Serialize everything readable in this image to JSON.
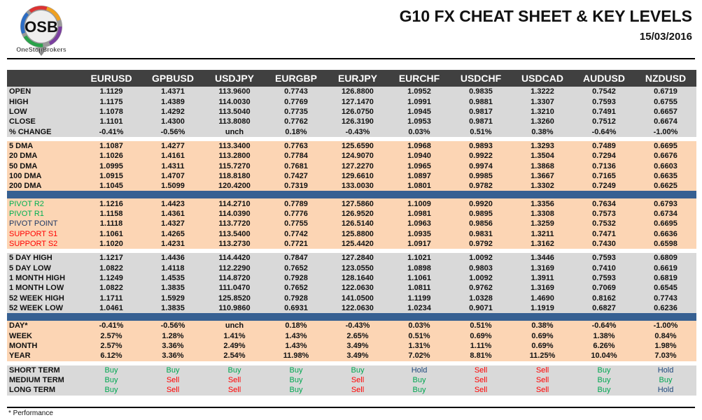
{
  "header": {
    "title": "G10 FX CHEAT SHEET & KEY LEVELS",
    "date": "15/03/2016",
    "logo_text": "OSB",
    "logo_caption": "OneStopBrokers"
  },
  "colors": {
    "header_bg": "#404040",
    "gray": "#d9d9d9",
    "peach": "#fcd5b4",
    "blue": "#366092",
    "buy": "#00a651",
    "sell": "#ff0000",
    "hold": "#1f497d",
    "pivot_r": "#00b050",
    "pivot_point": "#1f3864",
    "support": "#ff0000"
  },
  "columns": [
    "EURUSD",
    "GPBUSD",
    "USDJPY",
    "EURGBP",
    "EURJPY",
    "EURCHF",
    "USDCHF",
    "USDCAD",
    "AUDUSD",
    "NZDUSD"
  ],
  "sections": [
    {
      "style": "gray",
      "rows": [
        {
          "label": "OPEN",
          "values": [
            "1.1129",
            "1.4371",
            "113.9600",
            "0.7743",
            "126.8800",
            "1.0952",
            "0.9835",
            "1.3222",
            "0.7542",
            "0.6719"
          ]
        },
        {
          "label": "HIGH",
          "values": [
            "1.1175",
            "1.4389",
            "114.0030",
            "0.7769",
            "127.1470",
            "1.0991",
            "0.9881",
            "1.3307",
            "0.7593",
            "0.6755"
          ]
        },
        {
          "label": "LOW",
          "values": [
            "1.1078",
            "1.4292",
            "113.5040",
            "0.7735",
            "126.0750",
            "1.0945",
            "0.9817",
            "1.3210",
            "0.7491",
            "0.6657"
          ]
        },
        {
          "label": "CLOSE",
          "values": [
            "1.1101",
            "1.4300",
            "113.8080",
            "0.7762",
            "126.3190",
            "1.0953",
            "0.9871",
            "1.3260",
            "0.7512",
            "0.6674"
          ]
        },
        {
          "label": "% CHANGE",
          "values": [
            "-0.41%",
            "-0.56%",
            "unch",
            "0.18%",
            "-0.43%",
            "0.03%",
            "0.51%",
            "0.38%",
            "-0.64%",
            "-1.00%"
          ]
        }
      ],
      "after": "gap"
    },
    {
      "style": "peach",
      "rows": [
        {
          "label": "5 DMA",
          "values": [
            "1.1087",
            "1.4277",
            "113.3400",
            "0.7763",
            "125.6590",
            "1.0968",
            "0.9893",
            "1.3293",
            "0.7489",
            "0.6695"
          ]
        },
        {
          "label": "20 DMA",
          "values": [
            "1.1026",
            "1.4161",
            "113.2800",
            "0.7784",
            "124.9070",
            "1.0940",
            "0.9922",
            "1.3504",
            "0.7294",
            "0.6676"
          ]
        },
        {
          "label": "50 DMA",
          "values": [
            "1.0995",
            "1.4311",
            "115.7270",
            "0.7681",
            "127.2270",
            "1.0965",
            "0.9974",
            "1.3868",
            "0.7136",
            "0.6603"
          ]
        },
        {
          "label": "100 DMA",
          "values": [
            "1.0915",
            "1.4707",
            "118.8180",
            "0.7427",
            "129.6610",
            "1.0897",
            "0.9985",
            "1.3667",
            "0.7165",
            "0.6635"
          ]
        },
        {
          "label": "200 DMA",
          "values": [
            "1.1045",
            "1.5099",
            "120.4200",
            "0.7319",
            "133.0030",
            "1.0801",
            "0.9782",
            "1.3302",
            "0.7249",
            "0.6625"
          ]
        }
      ],
      "after": "blue"
    },
    {
      "style": "peach",
      "rows": [
        {
          "label": "PIVOT R2",
          "label_color": "pivot_r",
          "values": [
            "1.1216",
            "1.4423",
            "114.2710",
            "0.7789",
            "127.5860",
            "1.1009",
            "0.9920",
            "1.3356",
            "0.7634",
            "0.6793"
          ]
        },
        {
          "label": "PIVOT R1",
          "label_color": "pivot_r",
          "values": [
            "1.1158",
            "1.4361",
            "114.0390",
            "0.7776",
            "126.9520",
            "1.0981",
            "0.9895",
            "1.3308",
            "0.7573",
            "0.6734"
          ]
        },
        {
          "label": "PIVOT POINT",
          "label_color": "pivot_point",
          "values": [
            "1.1118",
            "1.4327",
            "113.7720",
            "0.7755",
            "126.5140",
            "1.0963",
            "0.9856",
            "1.3259",
            "0.7532",
            "0.6695"
          ]
        },
        {
          "label": "SUPPORT S1",
          "label_color": "support",
          "values": [
            "1.1061",
            "1.4265",
            "113.5400",
            "0.7742",
            "125.8800",
            "1.0935",
            "0.9831",
            "1.3211",
            "0.7471",
            "0.6636"
          ]
        },
        {
          "label": "SUPPORT S2",
          "label_color": "support",
          "values": [
            "1.1020",
            "1.4231",
            "113.2730",
            "0.7721",
            "125.4420",
            "1.0917",
            "0.9792",
            "1.3162",
            "0.7430",
            "0.6598"
          ]
        }
      ],
      "after": "gap"
    },
    {
      "style": "gray",
      "rows": [
        {
          "label": "5 DAY HIGH",
          "values": [
            "1.1217",
            "1.4436",
            "114.4420",
            "0.7847",
            "127.2840",
            "1.1021",
            "1.0092",
            "1.3446",
            "0.7593",
            "0.6809"
          ]
        },
        {
          "label": "5 DAY LOW",
          "values": [
            "1.0822",
            "1.4118",
            "112.2290",
            "0.7652",
            "123.0550",
            "1.0898",
            "0.9803",
            "1.3169",
            "0.7410",
            "0.6619"
          ]
        },
        {
          "label": "1 MONTH HIGH",
          "values": [
            "1.1249",
            "1.4535",
            "114.8720",
            "0.7928",
            "128.1640",
            "1.1061",
            "1.0092",
            "1.3911",
            "0.7593",
            "0.6819"
          ]
        },
        {
          "label": "1 MONTH LOW",
          "values": [
            "1.0822",
            "1.3835",
            "111.0470",
            "0.7652",
            "122.0630",
            "1.0811",
            "0.9762",
            "1.3169",
            "0.7069",
            "0.6545"
          ]
        },
        {
          "label": "52 WEEK HIGH",
          "values": [
            "1.1711",
            "1.5929",
            "125.8520",
            "0.7928",
            "141.0500",
            "1.1199",
            "1.0328",
            "1.4690",
            "0.8162",
            "0.7743"
          ]
        },
        {
          "label": "52 WEEK LOW",
          "values": [
            "1.0461",
            "1.3835",
            "110.9860",
            "0.6931",
            "122.0630",
            "1.0234",
            "0.9071",
            "1.1919",
            "0.6827",
            "0.6236"
          ]
        }
      ],
      "after": "blue"
    },
    {
      "style": "peach",
      "rows": [
        {
          "label": "DAY*",
          "values": [
            "-0.41%",
            "-0.56%",
            "unch",
            "0.18%",
            "-0.43%",
            "0.03%",
            "0.51%",
            "0.38%",
            "-0.64%",
            "-1.00%"
          ]
        },
        {
          "label": "WEEK",
          "values": [
            "2.57%",
            "1.28%",
            "1.41%",
            "1.43%",
            "2.65%",
            "0.51%",
            "0.69%",
            "0.69%",
            "1.38%",
            "0.84%"
          ]
        },
        {
          "label": "MONTH",
          "values": [
            "2.57%",
            "3.36%",
            "2.49%",
            "1.43%",
            "3.49%",
            "1.31%",
            "1.11%",
            "0.69%",
            "6.26%",
            "1.98%"
          ]
        },
        {
          "label": "YEAR",
          "values": [
            "6.12%",
            "3.36%",
            "2.54%",
            "11.98%",
            "3.49%",
            "7.02%",
            "8.81%",
            "11.25%",
            "10.04%",
            "7.03%"
          ]
        }
      ],
      "after": "gap"
    },
    {
      "style": "gray",
      "signals": true,
      "rows": [
        {
          "label": "SHORT TERM",
          "values": [
            "Buy",
            "Buy",
            "Buy",
            "Buy",
            "Buy",
            "Hold",
            "Sell",
            "Sell",
            "Buy",
            "Hold"
          ]
        },
        {
          "label": "MEDIUM TERM",
          "values": [
            "Buy",
            "Sell",
            "Sell",
            "Buy",
            "Sell",
            "Buy",
            "Sell",
            "Sell",
            "Buy",
            "Buy"
          ]
        },
        {
          "label": "LONG TERM",
          "values": [
            "Buy",
            "Sell",
            "Sell",
            "Buy",
            "Sell",
            "Buy",
            "Sell",
            "Sell",
            "Buy",
            "Hold"
          ]
        }
      ]
    }
  ],
  "footnote": "* Performance"
}
